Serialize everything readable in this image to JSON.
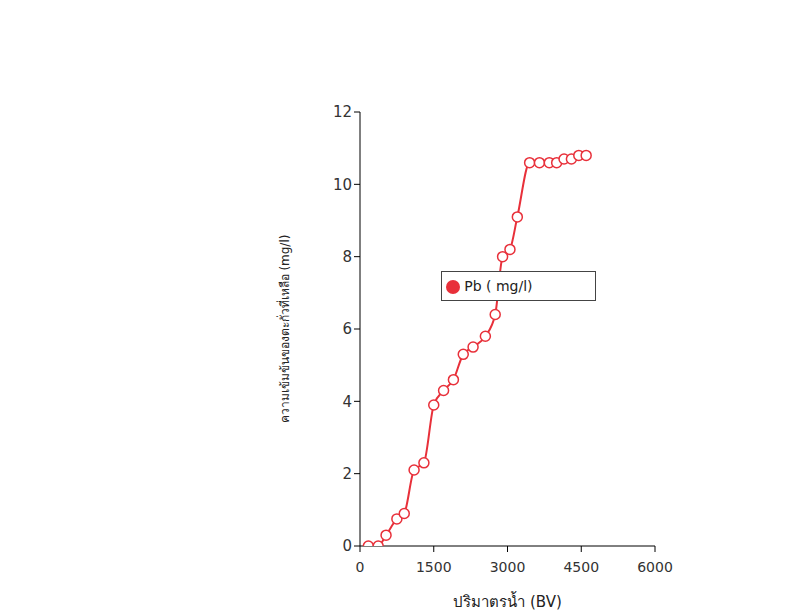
{
  "chart_data": {
    "type": "line",
    "x_label": "ปริมาตรน้ำ (BV)",
    "y_label": "ความเข้มข้นของตะกั่วที่เหลือ (mg/l)",
    "x": [
      170,
      370,
      530,
      750,
      900,
      1100,
      1300,
      1500,
      1700,
      1900,
      2100,
      2300,
      2550,
      2750,
      2900,
      3050,
      3200,
      3450,
      3650,
      3850,
      4000,
      4150,
      4300,
      4450,
      4600
    ],
    "series": [
      {
        "name": "Pb ( mg/l)",
        "color": "#e8303a",
        "marker": "circle",
        "line_style": "solid",
        "values": [
          0,
          0,
          0.3,
          0.75,
          0.9,
          2.1,
          2.3,
          3.9,
          4.3,
          4.6,
          5.3,
          5.5,
          5.8,
          6.4,
          8.0,
          8.2,
          9.1,
          10.6,
          10.6,
          10.6,
          10.6,
          10.7,
          10.7,
          10.8,
          10.8
        ]
      }
    ],
    "xlim": [
      0,
      6000
    ],
    "xticks": [
      0,
      1500,
      3000,
      4500,
      6000
    ],
    "ylim": [
      0,
      12
    ],
    "yticks": [
      0,
      2,
      4,
      6,
      8,
      10,
      12
    ],
    "grid": false,
    "legend": "right"
  }
}
